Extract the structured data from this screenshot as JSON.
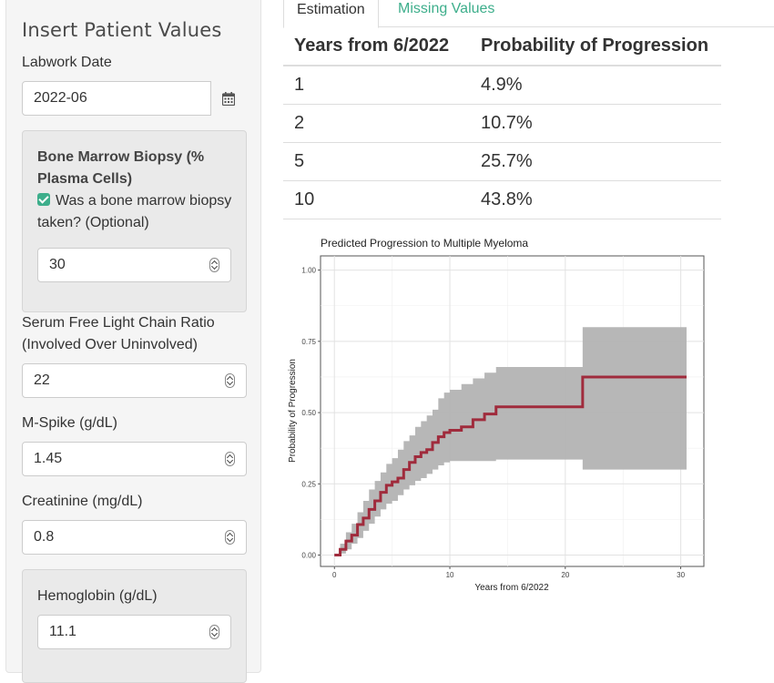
{
  "sidebar": {
    "title": "Insert Patient Values",
    "labwork": {
      "label": "Labwork Date",
      "value": "2022-06",
      "icon": "calendar-icon"
    },
    "bmb": {
      "title": "Bone Marrow Biopsy (% Plasma Cells)",
      "checkbox_label": "Was a bone marrow biopsy taken? (Optional)",
      "checked": true,
      "value": "30"
    },
    "flc": {
      "label": "Serum Free Light Chain Ratio (Involved Over Uninvolved)",
      "value": "22"
    },
    "mspike": {
      "label": "M-Spike (g/dL)",
      "value": "1.45"
    },
    "creat": {
      "label": "Creatinine (mg/dL)",
      "value": "0.8"
    },
    "hgb": {
      "label": "Hemoglobin (g/dL)",
      "value": "11.1"
    }
  },
  "tabs": [
    {
      "label": "Estimation",
      "active": true
    },
    {
      "label": "Missing Values",
      "active": false
    }
  ],
  "table": {
    "headers": [
      "Years from 6/2022",
      "Probability of Progression"
    ],
    "rows": [
      [
        "1",
        "4.9%"
      ],
      [
        "2",
        "10.7%"
      ],
      [
        "5",
        "25.7%"
      ],
      [
        "10",
        "43.8%"
      ]
    ]
  },
  "colors": {
    "accent": "#3dae8b",
    "line": "#a02b3c",
    "band": "#b3b3b3"
  },
  "chart_data": {
    "type": "line",
    "title": "Predicted Progression to Multiple Myeloma",
    "xlabel": "Years from 6/2022",
    "ylabel": "Probability of Progression",
    "xlim": [
      -1.2,
      32.0
    ],
    "ylim": [
      -0.04,
      1.05
    ],
    "xticks": [
      "0",
      "10",
      "20",
      "30"
    ],
    "yticks": [
      "0.00",
      "0.25",
      "0.50",
      "0.75",
      "1.00"
    ],
    "grid": true,
    "series": [
      {
        "x": [
          0,
          0.5,
          1,
          1.5,
          2,
          2.5,
          3,
          3.5,
          4,
          4.5,
          5,
          5.5,
          6,
          6.5,
          7,
          7.5,
          8,
          8.5,
          9,
          9.5,
          10,
          11,
          12,
          13,
          14,
          21.5,
          30.5
        ],
        "y": [
          0.0,
          0.02,
          0.049,
          0.07,
          0.107,
          0.13,
          0.16,
          0.19,
          0.22,
          0.245,
          0.257,
          0.27,
          0.3,
          0.325,
          0.345,
          0.36,
          0.37,
          0.395,
          0.415,
          0.43,
          0.438,
          0.45,
          0.475,
          0.495,
          0.52,
          0.625,
          0.625
        ],
        "lower": [
          0.0,
          0.005,
          0.02,
          0.04,
          0.06,
          0.085,
          0.11,
          0.135,
          0.16,
          0.18,
          0.19,
          0.21,
          0.23,
          0.245,
          0.26,
          0.27,
          0.285,
          0.3,
          0.315,
          0.325,
          0.33,
          0.33,
          0.33,
          0.33,
          0.335,
          0.3,
          0.3
        ],
        "upper": [
          0.0,
          0.04,
          0.08,
          0.11,
          0.15,
          0.19,
          0.23,
          0.26,
          0.29,
          0.32,
          0.34,
          0.37,
          0.4,
          0.42,
          0.45,
          0.47,
          0.49,
          0.51,
          0.55,
          0.57,
          0.58,
          0.6,
          0.62,
          0.64,
          0.66,
          0.8,
          0.8
        ]
      }
    ]
  }
}
